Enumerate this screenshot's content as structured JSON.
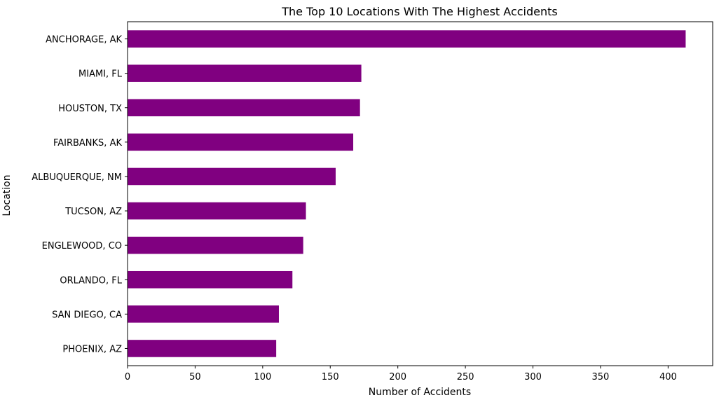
{
  "chart_data": {
    "type": "bar",
    "orientation": "horizontal",
    "title": "The Top 10 Locations With The Highest Accidents",
    "xlabel": "Number of Accidents",
    "ylabel": "Location",
    "categories": [
      "ANCHORAGE, AK",
      "MIAMI, FL",
      "HOUSTON, TX",
      "FAIRBANKS, AK",
      "ALBUQUERQUE, NM",
      "TUCSON, AZ",
      "ENGLEWOOD, CO",
      "ORLANDO, FL",
      "SAN DIEGO, CA",
      "PHOENIX, AZ"
    ],
    "values": [
      413,
      173,
      172,
      167,
      154,
      132,
      130,
      122,
      112,
      110
    ],
    "xlim": [
      0,
      433
    ],
    "xticks": [
      0,
      50,
      100,
      150,
      200,
      250,
      300,
      350,
      400
    ],
    "bar_color": "#800080",
    "grid": false,
    "legend": false
  }
}
